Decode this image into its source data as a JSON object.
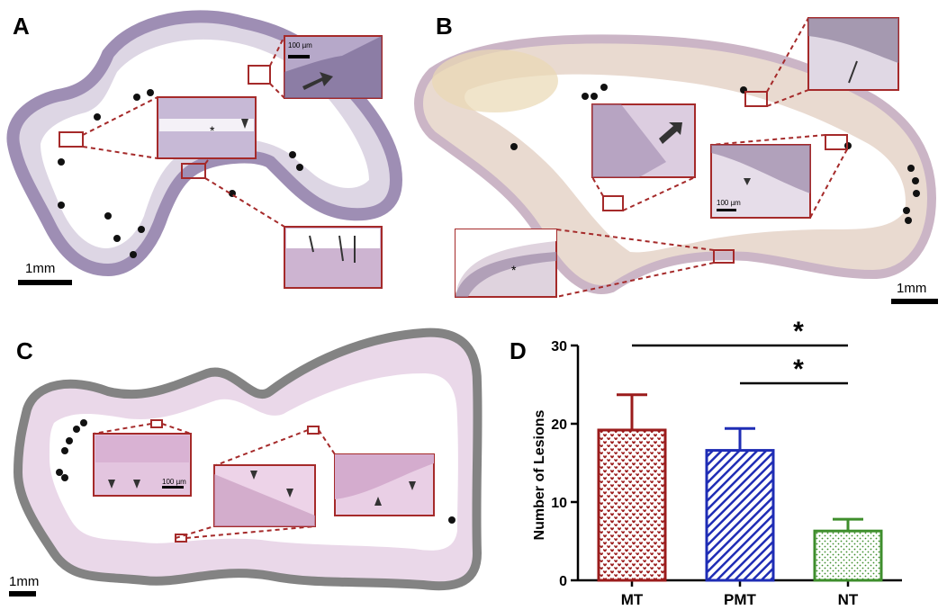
{
  "panels": {
    "a": {
      "letter": "A",
      "scale_label": "1mm",
      "inset_scale_label": "100 µm"
    },
    "b": {
      "letter": "B",
      "scale_label": "1mm",
      "inset_scale_label": "100 µm"
    },
    "c": {
      "letter": "C",
      "scale_label": "1mm",
      "inset_scale_label": "100 µm"
    },
    "d": {
      "letter": "D"
    }
  },
  "chart_data": {
    "type": "bar",
    "categories": [
      "MT",
      "PMT",
      "NT"
    ],
    "values": [
      19.2,
      16.6,
      6.3
    ],
    "errors": [
      4.5,
      2.8,
      1.5
    ],
    "bar_colors": [
      "#9b1c1c",
      "#1f2db5",
      "#3e8e2c"
    ],
    "bar_patterns": [
      "hearts",
      "diagonal-stripes",
      "dots"
    ],
    "ylabel": "Number of Lesions",
    "xlabel": "",
    "ylim": [
      0,
      30
    ],
    "yticks": [
      0,
      10,
      20,
      30
    ],
    "significance": [
      {
        "from": "MT",
        "to": "NT",
        "label": "*"
      },
      {
        "from": "PMT",
        "to": "NT",
        "label": "*"
      }
    ],
    "grid": false
  }
}
